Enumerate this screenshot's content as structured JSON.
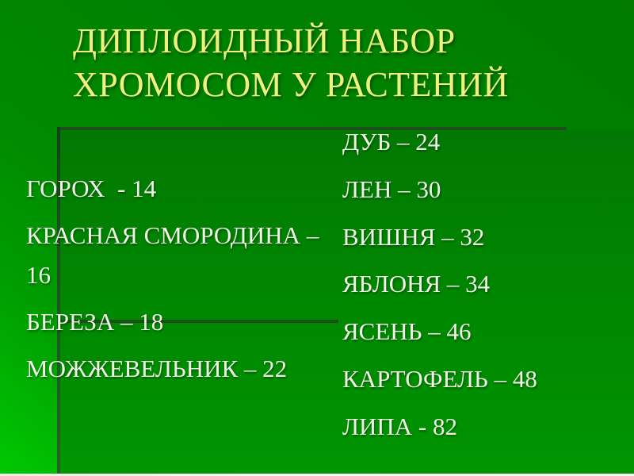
{
  "slide": {
    "kind": "presentation-slide",
    "title": {
      "full": "ДИПЛОИДНЫЙ НАБОР ХРОМОСОМ У РАСТЕНИЙ",
      "lines": [
        "ДИПЛОИДНЫЙ НАБОР",
        "ХРОМОСОМ У РАСТЕНИЙ"
      ]
    },
    "columns": {
      "left": {
        "items": [
          "ГОРОХ  - 14",
          "КРАСНАЯ СМОРОДИНА – 16",
          "БЕРЕЗА – 18",
          "МОЖЖЕВЕЛЬНИК – 22"
        ]
      },
      "right": {
        "items": [
          "ДУБ – 24",
          "ЛЕН – 30",
          "ВИШНЯ – 32",
          "ЯБЛОНЯ – 34",
          "ЯСЕНЬ – 46",
          "КАРТОФЕЛЬ – 48",
          "ЛИПА - 82"
        ]
      }
    },
    "colors": {
      "background_top": "#007B00",
      "background_bottom_left": "#00C902",
      "panel_fill_top": "#027802",
      "panel_fill_bottom": "#009503",
      "accent_line": "#1C4F1C",
      "title_text": "#EFF07D",
      "body_text": "#F3F4E9",
      "bottom_strip": "#FAFAF7"
    }
  }
}
